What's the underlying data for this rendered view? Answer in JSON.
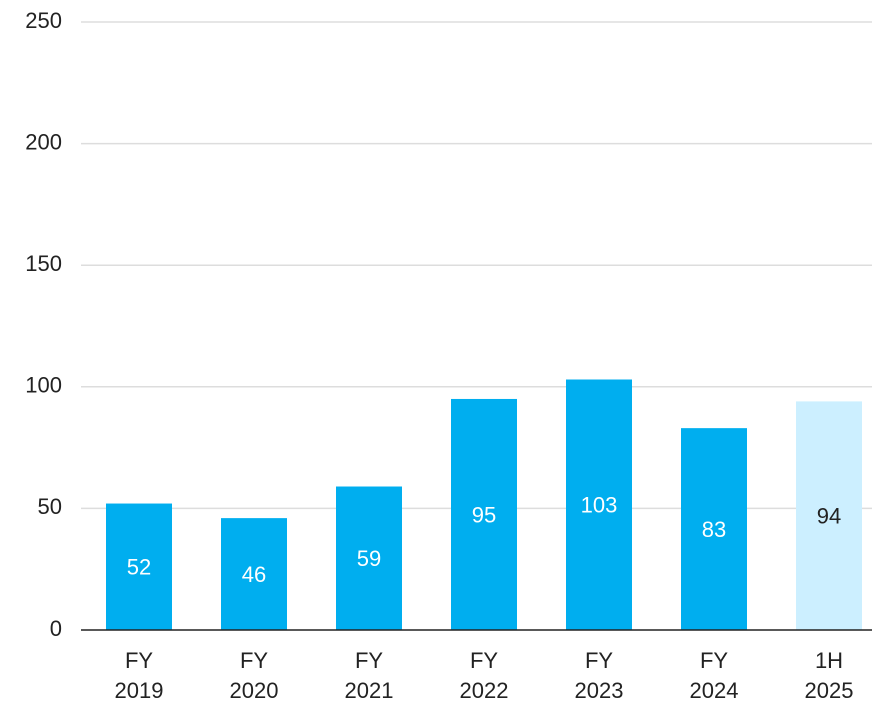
{
  "chart_data": {
    "type": "bar",
    "categories": [
      "FY 2019",
      "FY 2020",
      "FY 2021",
      "FY 2022",
      "FY 2023",
      "FY 2024",
      "1H 2025"
    ],
    "values": [
      52,
      46,
      59,
      95,
      103,
      83,
      94
    ],
    "colors": [
      "#00aeef",
      "#00aeef",
      "#00aeef",
      "#00aeef",
      "#00aeef",
      "#00aeef",
      "#ccefff"
    ],
    "label_colors": [
      "#ffffff",
      "#ffffff",
      "#ffffff",
      "#ffffff",
      "#ffffff",
      "#ffffff",
      "#222222"
    ],
    "ylim": [
      0,
      250
    ],
    "yticks": [
      0,
      50,
      100,
      150,
      200,
      250
    ],
    "grid": true
  }
}
